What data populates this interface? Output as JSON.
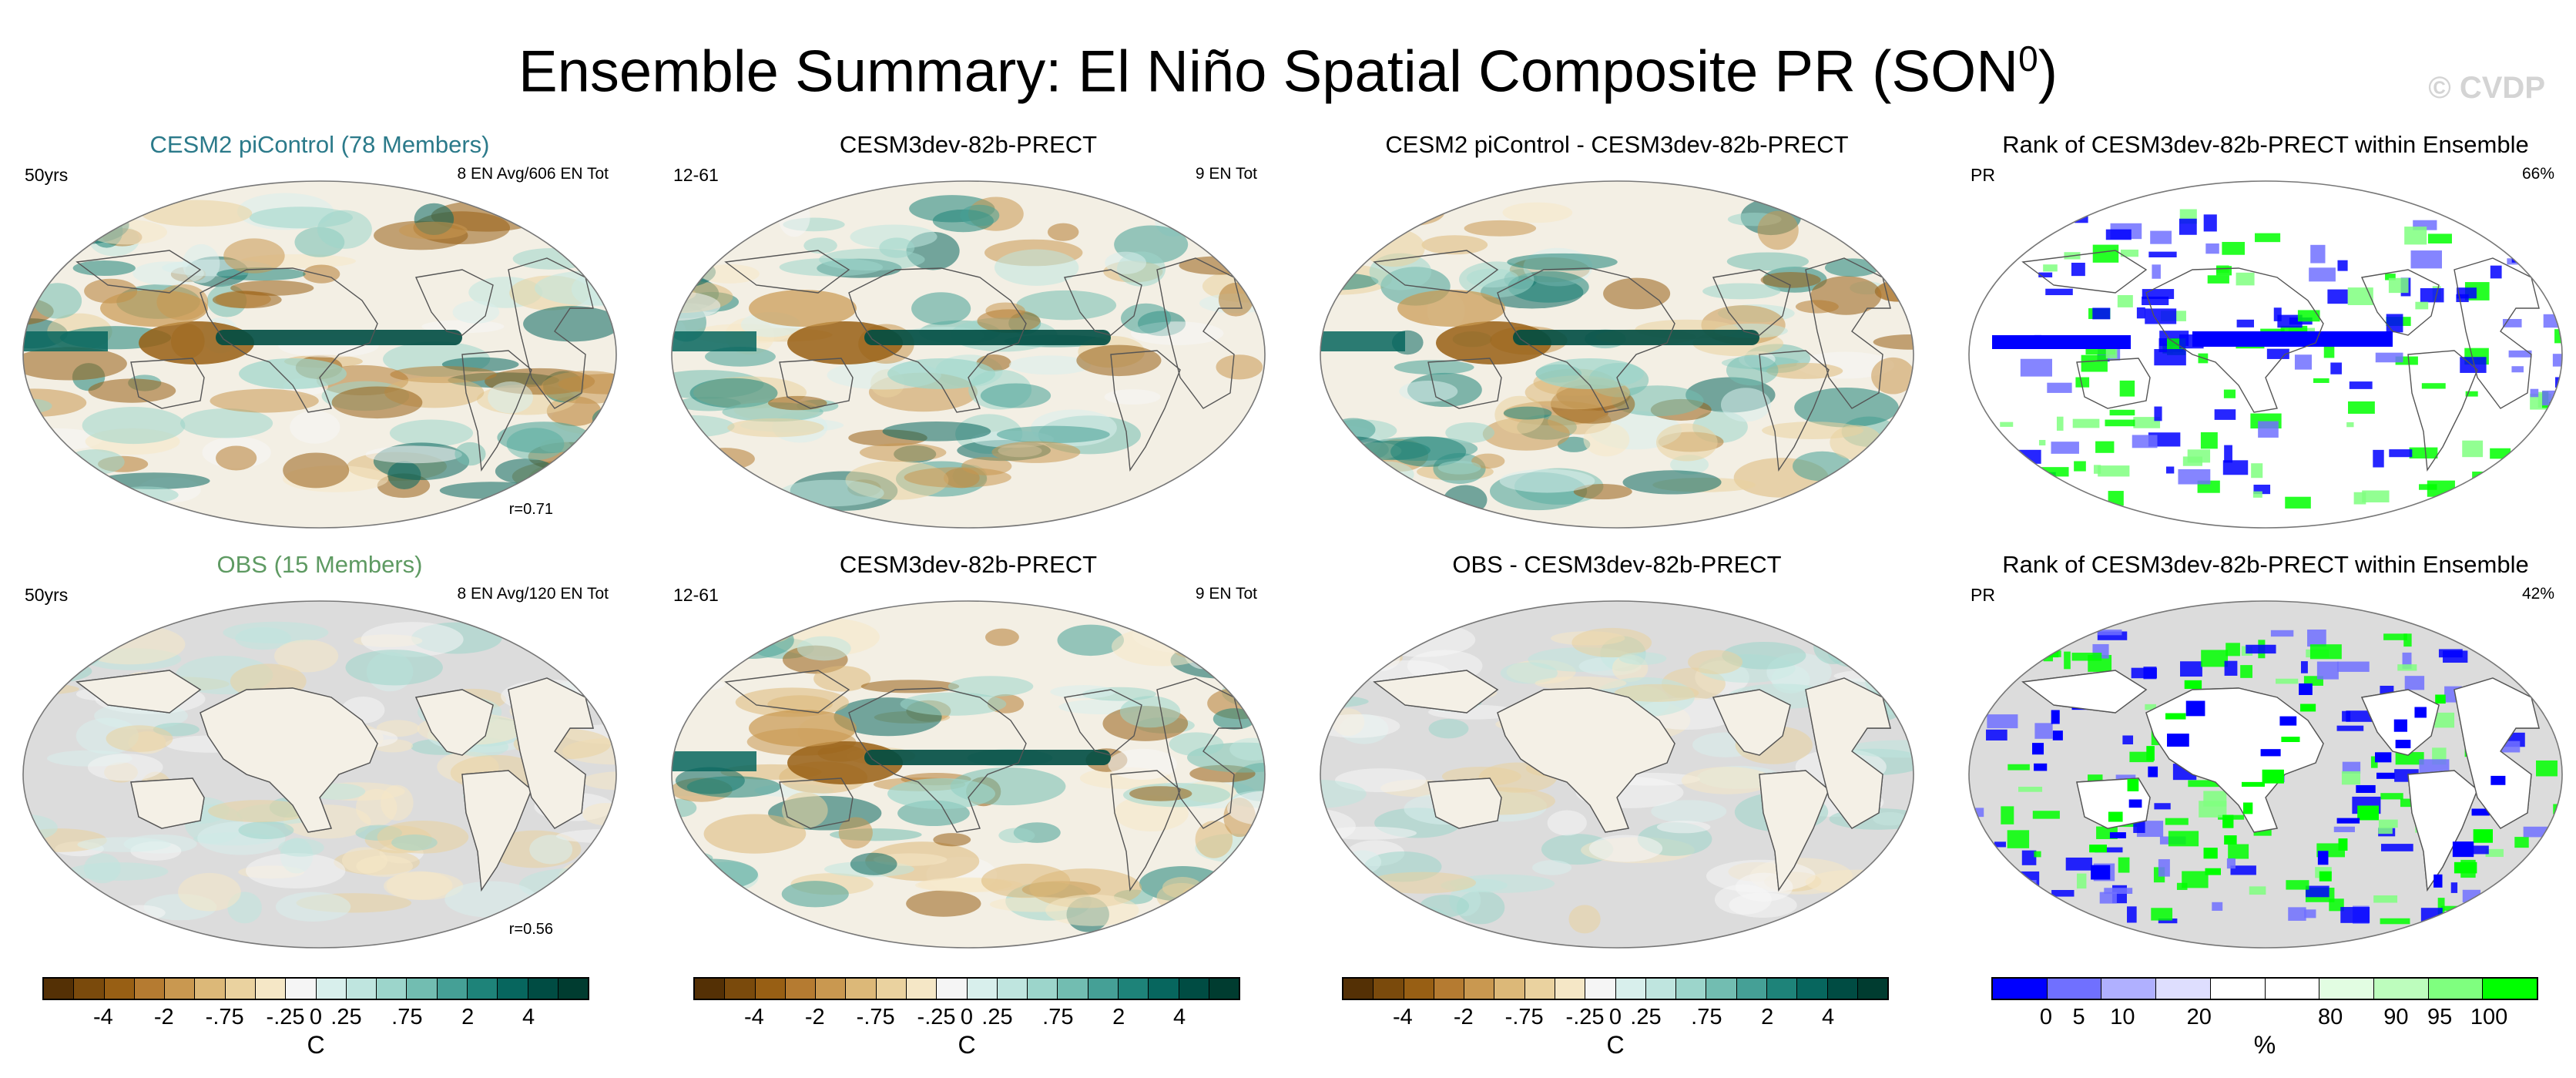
{
  "figure": {
    "title": "Ensemble Summary: El Niño Spatial Composite PR (SON",
    "title_sup": "0",
    "title_close": ")",
    "watermark": "© CVDP"
  },
  "panels": [
    {
      "title": "CESM2 piControl (78 Members)",
      "title_color": "#2b7a8a",
      "left_text": "50yrs",
      "right_text": "8 EN Avg/606 EN Tot",
      "bottom_text": "r=0.71",
      "kind": "model",
      "land_masked": false
    },
    {
      "title": "CESM3dev-82b-PRECT",
      "title_color": "#000000",
      "left_text": "12-61",
      "right_text": "9 EN Tot",
      "bottom_text": "",
      "kind": "model",
      "land_masked": false
    },
    {
      "title": "CESM2 piControl - CESM3dev-82b-PRECT",
      "title_color": "#000000",
      "left_text": "",
      "right_text": "",
      "bottom_text": "",
      "kind": "diff",
      "land_masked": false
    },
    {
      "title": "Rank of CESM3dev-82b-PRECT within Ensemble",
      "title_color": "#000000",
      "left_text": "PR",
      "right_text": "66%",
      "bottom_text": "",
      "kind": "rank",
      "land_masked": false
    },
    {
      "title": "OBS (15 Members)",
      "title_color": "#5e9a62",
      "left_text": "50yrs",
      "right_text": "8 EN Avg/120 EN Tot",
      "bottom_text": "r=0.56",
      "kind": "obs",
      "land_masked": true
    },
    {
      "title": "CESM3dev-82b-PRECT",
      "title_color": "#000000",
      "left_text": "12-61",
      "right_text": "9 EN Tot",
      "bottom_text": "",
      "kind": "model",
      "land_masked": false
    },
    {
      "title": "OBS - CESM3dev-82b-PRECT",
      "title_color": "#000000",
      "left_text": "",
      "right_text": "",
      "bottom_text": "",
      "kind": "obsdiff",
      "land_masked": true
    },
    {
      "title": "Rank of CESM3dev-82b-PRECT within Ensemble",
      "title_color": "#000000",
      "left_text": "PR",
      "right_text": "42%",
      "bottom_text": "",
      "kind": "rankland",
      "land_masked": true
    }
  ],
  "chart_data": {
    "type": "heatmap",
    "title": "Ensemble Summary: El Niño Spatial Composite PR (SON0)",
    "colorbars": [
      {
        "unit": "C",
        "colors": [
          "#543005",
          "#7a4a0c",
          "#985f14",
          "#b57b31",
          "#c99850",
          "#dcb878",
          "#ead29f",
          "#f5e7c6",
          "#f5f5f5",
          "#d8efec",
          "#bfe5df",
          "#9cd5cb",
          "#72bdb1",
          "#45a096",
          "#1e8379",
          "#07665e",
          "#004c43",
          "#003c30"
        ],
        "tick_labels": [
          "-4",
          "-2",
          "-.75",
          "-.25",
          "0",
          ".25",
          ".75",
          "2",
          "4"
        ],
        "tick_boundaries": [
          2,
          4,
          6,
          8,
          9,
          10,
          12,
          14,
          16
        ]
      },
      {
        "unit": "%",
        "colors": [
          "#0000ff",
          "#7070ff",
          "#b0b0ff",
          "#dedefe",
          "#ffffff",
          "#ffffff",
          "#e2fde2",
          "#bdfdbd",
          "#7fff7f",
          "#00ff00"
        ],
        "tick_labels": [
          "0",
          "5",
          "10",
          "20",
          "80",
          "90",
          "95",
          "100"
        ],
        "tick_boundaries": [
          1,
          1.6,
          2.4,
          3.8,
          6.2,
          7.4,
          8.2,
          9.1
        ]
      }
    ]
  }
}
